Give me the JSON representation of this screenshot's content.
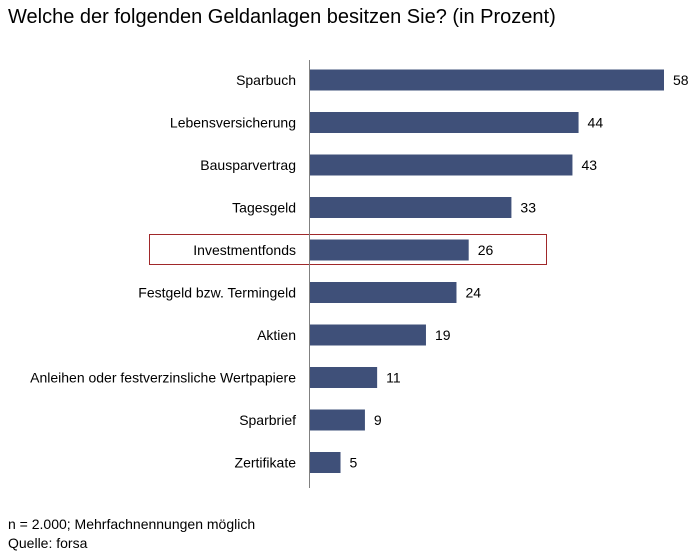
{
  "chart_data": {
    "type": "bar",
    "orientation": "horizontal",
    "title": "Welche der folgenden Geldanlagen besitzen Sie? (in Prozent)",
    "categories": [
      "Sparbuch",
      "Lebensversicherung",
      "Bausparvertrag",
      "Tagesgeld",
      "Investmentfonds",
      "Festgeld bzw. Termingeld",
      "Aktien",
      "Anleihen oder festverzinsliche Wertpapiere",
      "Sparbrief",
      "Zertifikate"
    ],
    "values": [
      58,
      44,
      43,
      33,
      26,
      24,
      19,
      11,
      9,
      5
    ],
    "highlighted_category": "Investmentfonds",
    "xlim": [
      0,
      58
    ],
    "bar_color": "#3f5079",
    "highlight_color": "#a0282a"
  },
  "footer": {
    "note": "n = 2.000; Mehrfachnennungen möglich",
    "source": "Quelle: forsa"
  }
}
